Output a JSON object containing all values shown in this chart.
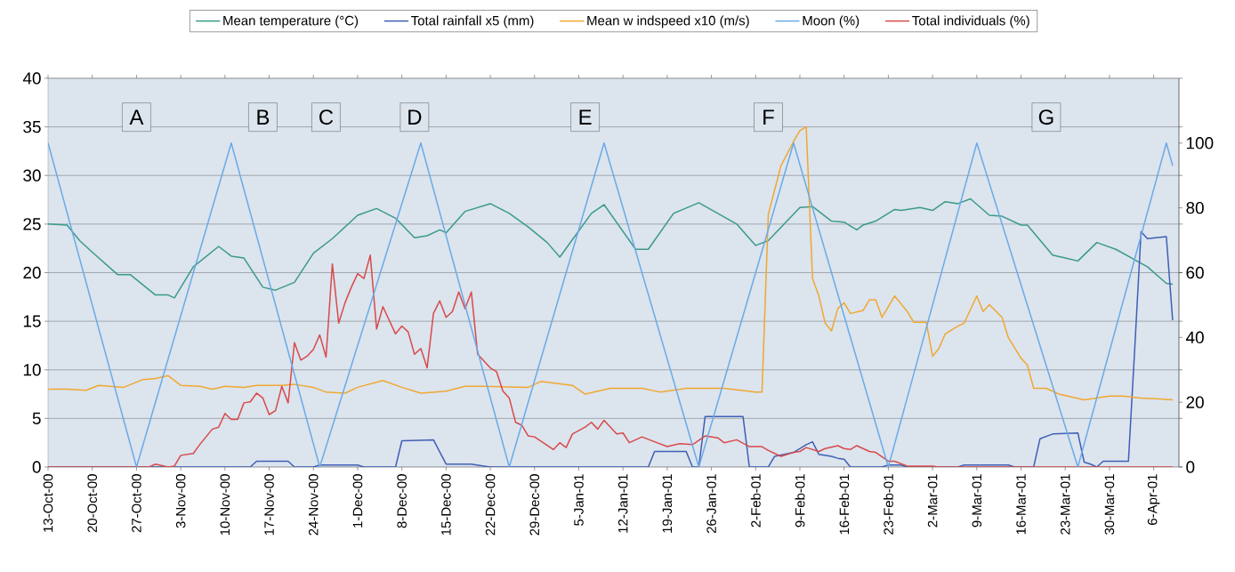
{
  "chart_data": {
    "type": "line",
    "xlim": [
      "2000-10-13",
      "2001-04-10"
    ],
    "xticks": [
      {
        "value": "2000-10-13",
        "label": "13-Oct-00"
      },
      {
        "value": "2000-10-20",
        "label": "20-Oct-00"
      },
      {
        "value": "2000-10-27",
        "label": "27-Oct-00"
      },
      {
        "value": "2000-11-03",
        "label": "3-Nov-00"
      },
      {
        "value": "2000-11-10",
        "label": "10-Nov-00"
      },
      {
        "value": "2000-11-17",
        "label": "17-Nov-00"
      },
      {
        "value": "2000-11-24",
        "label": "24-Nov-00"
      },
      {
        "value": "2000-12-01",
        "label": "1-Dec-00"
      },
      {
        "value": "2000-12-08",
        "label": "8-Dec-00"
      },
      {
        "value": "2000-12-15",
        "label": "15-Dec-00"
      },
      {
        "value": "2000-12-22",
        "label": "22-Dec-00"
      },
      {
        "value": "2000-12-29",
        "label": "29-Dec-00"
      },
      {
        "value": "2001-01-05",
        "label": "5-Jan-01"
      },
      {
        "value": "2001-01-12",
        "label": "12-Jan-01"
      },
      {
        "value": "2001-01-19",
        "label": "19-Jan-01"
      },
      {
        "value": "2001-01-26",
        "label": "26-Jan-01"
      },
      {
        "value": "2001-02-02",
        "label": "2-Feb-01"
      },
      {
        "value": "2001-02-09",
        "label": "9-Feb-01"
      },
      {
        "value": "2001-02-16",
        "label": "16-Feb-01"
      },
      {
        "value": "2001-02-23",
        "label": "23-Feb-01"
      },
      {
        "value": "2001-03-02",
        "label": "2-Mar-01"
      },
      {
        "value": "2001-03-09",
        "label": "9-Mar-01"
      },
      {
        "value": "2001-03-16",
        "label": "16-Mar-01"
      },
      {
        "value": "2001-03-23",
        "label": "23-Mar-01"
      },
      {
        "value": "2001-03-30",
        "label": "30-Mar-01"
      },
      {
        "value": "2001-04-06",
        "label": "6-Apr-01"
      }
    ],
    "ylim": [
      0,
      40
    ],
    "yticks": [
      0,
      5,
      10,
      15,
      20,
      25,
      30,
      35,
      40
    ],
    "y2lim": [
      0,
      120
    ],
    "y2ticks": [
      0,
      20,
      40,
      60,
      80,
      100
    ],
    "grid": "y",
    "legend": "top",
    "annotations": [
      {
        "text": "A",
        "x": "2000-10-27",
        "y": 36
      },
      {
        "text": "B",
        "x": "2000-11-16",
        "y": 36
      },
      {
        "text": "C",
        "x": "2000-11-26",
        "y": 36
      },
      {
        "text": "D",
        "x": "2000-12-10",
        "y": 36
      },
      {
        "text": "E",
        "x": "2001-01-06",
        "y": 36
      },
      {
        "text": "F",
        "x": "2001-02-04",
        "y": 36
      },
      {
        "text": "G",
        "x": "2001-03-20",
        "y": 36
      }
    ],
    "series": [
      {
        "name": "Mean temperature (°C)",
        "color": "#3a9a8a",
        "x": [
          "2000-10-13",
          "2000-10-16",
          "2000-10-18",
          "2000-10-20",
          "2000-10-24",
          "2000-10-26",
          "2000-10-30",
          "2000-11-01",
          "2000-11-02",
          "2000-11-05",
          "2000-11-09",
          "2000-11-11",
          "2000-11-13",
          "2000-11-16",
          "2000-11-18",
          "2000-11-21",
          "2000-11-24",
          "2000-11-27",
          "2000-12-01",
          "2000-12-04",
          "2000-12-07",
          "2000-12-10",
          "2000-12-12",
          "2000-12-14",
          "2000-12-15",
          "2000-12-18",
          "2000-12-22",
          "2000-12-25",
          "2000-12-28",
          "2000-12-31",
          "2001-01-02",
          "2001-01-07",
          "2001-01-09",
          "2001-01-14",
          "2001-01-16",
          "2001-01-20",
          "2001-01-24",
          "2001-01-27",
          "2001-01-30",
          "2001-02-02",
          "2001-02-04",
          "2001-02-09",
          "2001-02-11",
          "2001-02-14",
          "2001-02-16",
          "2001-02-18",
          "2001-02-19",
          "2001-02-21",
          "2001-02-24",
          "2001-02-25",
          "2001-02-28",
          "2001-03-02",
          "2001-03-04",
          "2001-03-06",
          "2001-03-08",
          "2001-03-11",
          "2001-03-13",
          "2001-03-16",
          "2001-03-17",
          "2001-03-21",
          "2001-03-23",
          "2001-03-25",
          "2001-03-28",
          "2001-03-31",
          "2001-04-05",
          "2001-04-08",
          "2001-04-09"
        ],
        "values": [
          25.0,
          24.9,
          23.3,
          22.1,
          19.8,
          19.8,
          17.7,
          17.7,
          17.4,
          20.6,
          22.7,
          21.7,
          21.5,
          18.5,
          18.2,
          19.0,
          22.0,
          23.5,
          25.9,
          26.6,
          25.6,
          23.6,
          23.8,
          24.4,
          24.1,
          26.3,
          27.1,
          26.1,
          24.7,
          23.1,
          21.6,
          26.1,
          27.0,
          22.4,
          22.4,
          26.1,
          27.2,
          26.1,
          25.0,
          22.8,
          23.3,
          26.7,
          26.8,
          25.3,
          25.2,
          24.4,
          24.9,
          25.3,
          26.5,
          26.4,
          26.7,
          26.4,
          27.3,
          27.1,
          27.6,
          25.9,
          25.8,
          24.9,
          24.9,
          21.8,
          21.5,
          21.2,
          23.1,
          22.4,
          20.6,
          18.9,
          18.8
        ]
      },
      {
        "name": "Total rainfall x5 (mm)",
        "color": "#3f5fb5",
        "x": [
          "2000-10-13",
          "2000-11-14",
          "2000-11-15",
          "2000-11-20",
          "2000-11-21",
          "2000-11-24",
          "2000-11-25",
          "2000-12-01",
          "2000-12-02",
          "2000-12-07",
          "2000-12-08",
          "2000-12-13",
          "2000-12-15",
          "2000-12-19",
          "2000-12-21",
          "2000-12-22",
          "2001-01-16",
          "2001-01-17",
          "2001-01-22",
          "2001-01-23",
          "2001-01-24",
          "2001-01-25",
          "2001-01-31",
          "2001-02-01",
          "2001-02-04",
          "2001-02-05",
          "2001-02-08",
          "2001-02-10",
          "2001-02-11",
          "2001-02-12",
          "2001-02-14",
          "2001-02-15",
          "2001-02-16",
          "2001-02-17",
          "2001-02-22",
          "2001-02-23",
          "2001-02-25",
          "2001-02-26",
          "2001-03-06",
          "2001-03-07",
          "2001-03-14",
          "2001-03-15",
          "2001-03-18",
          "2001-03-19",
          "2001-03-21",
          "2001-03-25",
          "2001-03-26",
          "2001-03-27",
          "2001-03-28",
          "2001-03-29",
          "2001-04-02",
          "2001-04-03",
          "2001-04-04",
          "2001-04-05",
          "2001-04-08",
          "2001-04-09"
        ],
        "values": [
          0,
          0,
          0.6,
          0.6,
          0,
          0,
          0.2,
          0.2,
          0,
          0,
          2.7,
          2.8,
          0.3,
          0.3,
          0.1,
          0,
          0,
          1.6,
          1.6,
          0,
          0,
          5.2,
          5.2,
          0,
          0,
          1.1,
          1.5,
          2.3,
          2.6,
          1.3,
          1.1,
          0.9,
          0.8,
          0,
          0,
          0.2,
          0.2,
          0,
          0,
          0.2,
          0.2,
          0,
          0,
          2.9,
          3.4,
          3.5,
          0.5,
          0.3,
          0,
          0.6,
          0.6,
          12.2,
          24.2,
          23.5,
          23.7,
          15.1
        ]
      },
      {
        "name": "Mean w indspeed x10 (m/s)",
        "color": "#f0a830",
        "x": [
          "2000-10-13",
          "2000-10-16",
          "2000-10-19",
          "2000-10-21",
          "2000-10-25",
          "2000-10-28",
          "2000-10-30",
          "2000-11-01",
          "2000-11-03",
          "2000-11-06",
          "2000-11-08",
          "2000-11-10",
          "2000-11-13",
          "2000-11-15",
          "2000-11-19",
          "2000-11-21",
          "2000-11-24",
          "2000-11-26",
          "2000-11-29",
          "2000-12-01",
          "2000-12-05",
          "2000-12-08",
          "2000-12-11",
          "2000-12-15",
          "2000-12-18",
          "2000-12-21",
          "2000-12-28",
          "2000-12-30",
          "2001-01-04",
          "2001-01-06",
          "2001-01-10",
          "2001-01-15",
          "2001-01-18",
          "2001-01-22",
          "2001-01-28",
          "2001-02-02",
          "2001-02-03",
          "2001-02-04",
          "2001-02-05",
          "2001-02-06",
          "2001-02-08",
          "2001-02-09",
          "2001-02-10",
          "2001-02-11",
          "2001-02-12",
          "2001-02-13",
          "2001-02-14",
          "2001-02-15",
          "2001-02-16",
          "2001-02-17",
          "2001-02-19",
          "2001-02-20",
          "2001-02-21",
          "2001-02-22",
          "2001-02-24",
          "2001-02-26",
          "2001-02-27",
          "2001-03-01",
          "2001-03-02",
          "2001-03-03",
          "2001-03-04",
          "2001-03-06",
          "2001-03-07",
          "2001-03-09",
          "2001-03-10",
          "2001-03-11",
          "2001-03-13",
          "2001-03-14",
          "2001-03-16",
          "2001-03-17",
          "2001-03-18",
          "2001-03-20",
          "2001-03-22",
          "2001-03-26",
          "2001-03-30",
          "2001-04-01",
          "2001-04-04",
          "2001-04-07",
          "2001-04-09"
        ],
        "values": [
          8.0,
          8.0,
          7.9,
          8.4,
          8.2,
          9.0,
          9.1,
          9.4,
          8.4,
          8.3,
          8.0,
          8.3,
          8.2,
          8.4,
          8.4,
          8.5,
          8.2,
          7.7,
          7.6,
          8.2,
          8.9,
          8.2,
          7.6,
          7.8,
          8.3,
          8.3,
          8.2,
          8.8,
          8.4,
          7.5,
          8.1,
          8.1,
          7.7,
          8.1,
          8.1,
          7.7,
          7.7,
          26.0,
          28.5,
          31.0,
          33.5,
          34.6,
          35.0,
          19.4,
          17.6,
          14.8,
          14.0,
          16.3,
          16.9,
          15.8,
          16.1,
          17.2,
          17.2,
          15.4,
          17.6,
          16.0,
          14.9,
          14.9,
          11.4,
          12.2,
          13.7,
          14.5,
          14.8,
          17.6,
          16.0,
          16.7,
          15.4,
          13.3,
          11.2,
          10.5,
          8.1,
          8.1,
          7.5,
          6.9,
          7.3,
          7.3,
          7.1,
          7.0,
          6.9
        ]
      },
      {
        "name": "Moon (%)",
        "color": "#6aaae8",
        "axis": "y2",
        "x": [
          "2000-10-13",
          "2000-10-27",
          "2000-11-11",
          "2000-11-25",
          "2000-12-11",
          "2000-12-25",
          "2001-01-09",
          "2001-01-24",
          "2001-02-08",
          "2001-02-23",
          "2001-03-09",
          "2001-03-25",
          "2001-04-08",
          "2001-04-09"
        ],
        "values": [
          100,
          0,
          100,
          0,
          100,
          0,
          100,
          0,
          100,
          0,
          100,
          0,
          100,
          93
        ]
      },
      {
        "name": "Total individuals (%)",
        "color": "#d84a4a",
        "x": [
          "2000-10-13",
          "2000-10-29",
          "2000-10-30",
          "2000-11-01",
          "2000-11-02",
          "2000-11-03",
          "2000-11-05",
          "2000-11-06",
          "2000-11-08",
          "2000-11-09",
          "2000-11-10",
          "2000-11-11",
          "2000-11-12",
          "2000-11-13",
          "2000-11-14",
          "2000-11-15",
          "2000-11-16",
          "2000-11-17",
          "2000-11-18",
          "2000-11-19",
          "2000-11-20",
          "2000-11-21",
          "2000-11-22",
          "2000-11-23",
          "2000-11-24",
          "2000-11-25",
          "2000-11-26",
          "2000-11-27",
          "2000-11-28",
          "2000-11-29",
          "2000-11-30",
          "2000-12-01",
          "2000-12-02",
          "2000-12-03",
          "2000-12-04",
          "2000-12-05",
          "2000-12-07",
          "2000-12-08",
          "2000-12-09",
          "2000-12-10",
          "2000-12-11",
          "2000-12-12",
          "2000-12-13",
          "2000-12-14",
          "2000-12-15",
          "2000-12-16",
          "2000-12-17",
          "2000-12-18",
          "2000-12-19",
          "2000-12-20",
          "2000-12-22",
          "2000-12-23",
          "2000-12-24",
          "2000-12-25",
          "2000-12-26",
          "2000-12-27",
          "2000-12-28",
          "2000-12-29",
          "2001-01-01",
          "2001-01-02",
          "2001-01-03",
          "2001-01-04",
          "2001-01-06",
          "2001-01-07",
          "2001-01-08",
          "2001-01-09",
          "2001-01-11",
          "2001-01-12",
          "2001-01-13",
          "2001-01-14",
          "2001-01-15",
          "2001-01-17",
          "2001-01-19",
          "2001-01-21",
          "2001-01-23",
          "2001-01-25",
          "2001-01-27",
          "2001-01-28",
          "2001-01-30",
          "2001-02-01",
          "2001-02-03",
          "2001-02-04",
          "2001-02-06",
          "2001-02-08",
          "2001-02-09",
          "2001-02-10",
          "2001-02-12",
          "2001-02-13",
          "2001-02-15",
          "2001-02-16",
          "2001-02-17",
          "2001-02-18",
          "2001-02-20",
          "2001-02-21",
          "2001-02-23",
          "2001-02-24",
          "2001-02-26",
          "2001-03-02",
          "2001-03-03",
          "2001-04-09"
        ],
        "values": [
          0,
          0,
          0.3,
          0,
          0.1,
          1.2,
          1.4,
          2.3,
          3.9,
          4.1,
          5.5,
          4.9,
          4.9,
          6.6,
          6.7,
          7.6,
          7.1,
          5.4,
          5.8,
          8.3,
          6.6,
          12.8,
          11.0,
          11.4,
          12.1,
          13.6,
          11.3,
          20.9,
          14.8,
          16.9,
          18.5,
          19.9,
          19.4,
          21.8,
          14.2,
          16.5,
          13.7,
          14.5,
          13.9,
          11.6,
          12.2,
          10.2,
          15.8,
          17.1,
          15.4,
          16.0,
          18.0,
          16.3,
          18.0,
          11.6,
          10.2,
          9.8,
          7.8,
          7.1,
          4.6,
          4.3,
          3.2,
          3.1,
          1.8,
          2.5,
          2.0,
          3.4,
          4.1,
          4.6,
          3.9,
          4.8,
          3.4,
          3.5,
          2.5,
          2.8,
          3.1,
          2.6,
          2.1,
          2.4,
          2.3,
          3.2,
          3.0,
          2.5,
          2.8,
          2.1,
          2.1,
          1.7,
          1.1,
          1.5,
          1.6,
          2.0,
          1.6,
          1.9,
          2.2,
          1.9,
          1.8,
          2.2,
          1.6,
          1.5,
          0.6,
          0.6,
          0.1,
          0.1,
          0,
          0
        ]
      }
    ]
  }
}
